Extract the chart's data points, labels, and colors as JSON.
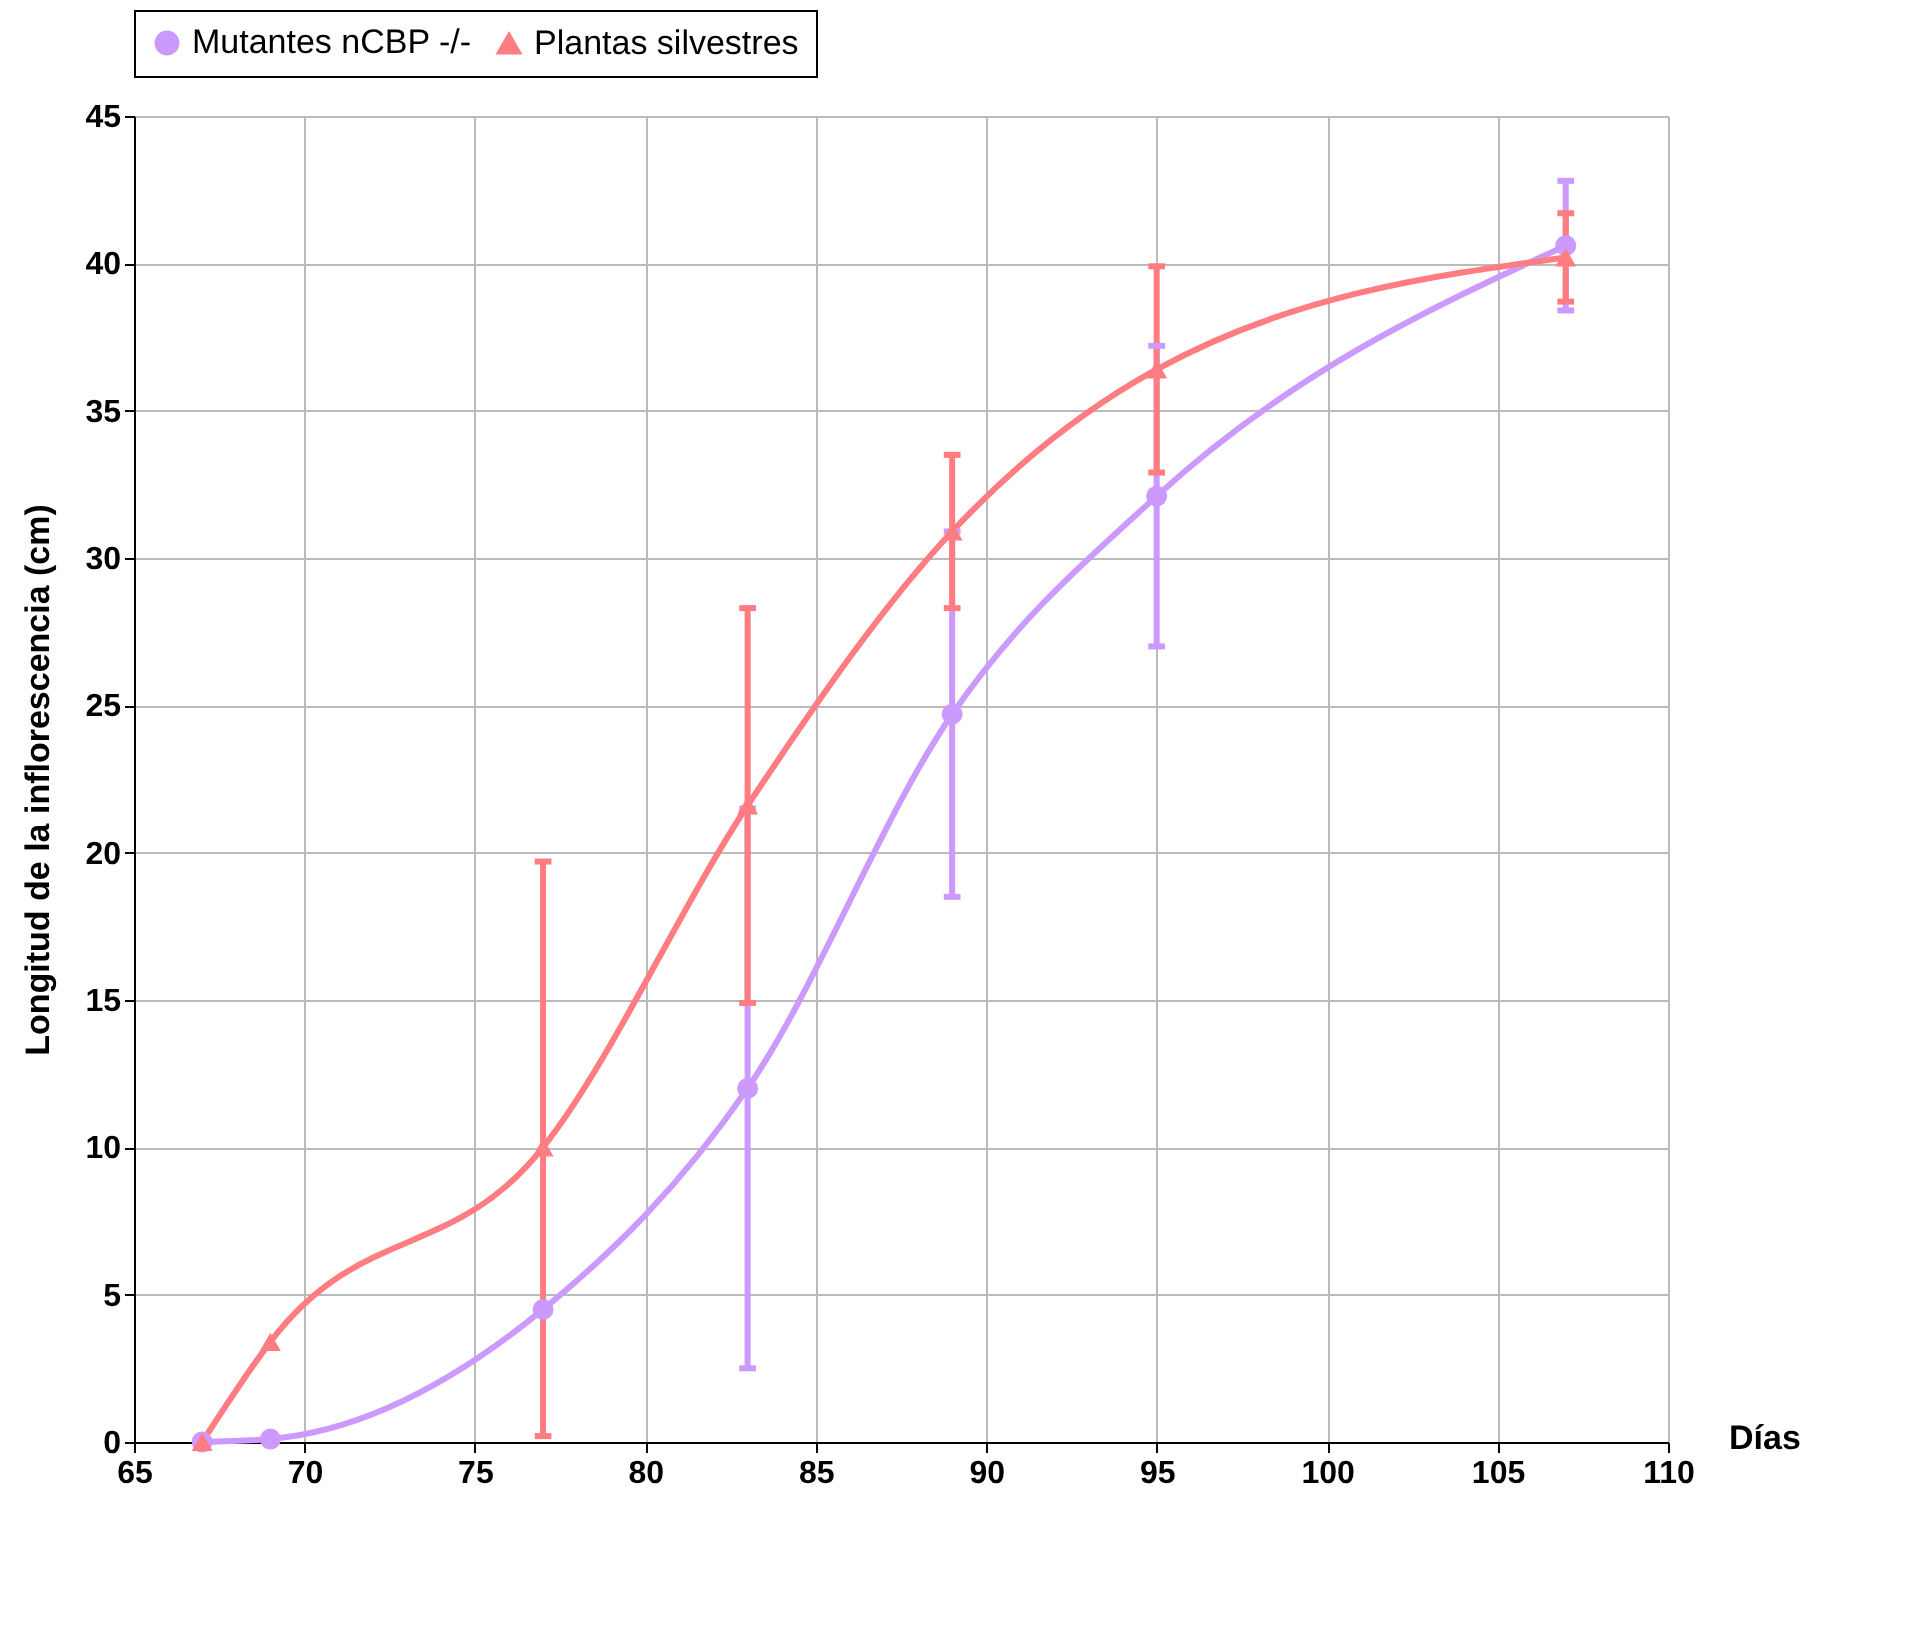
{
  "chart_data": {
    "type": "line",
    "xlabel": "Días",
    "ylabel": "Longitud de la inflorescencia (cm)",
    "x": [
      67,
      69,
      77,
      83,
      89,
      95,
      107
    ],
    "series": [
      {
        "name": "Mutantes nCBP -/-",
        "color": "#cc99ff",
        "marker": "circle",
        "values": [
          0,
          0.1,
          4.5,
          12,
          24.7,
          32.1,
          40.6
        ],
        "errors": [
          null,
          null,
          null,
          9.5,
          6.2,
          5.1,
          2.2
        ]
      },
      {
        "name": "Plantas silvestres",
        "color": "#ff7c80",
        "marker": "triangle",
        "values": [
          0,
          3.4,
          10,
          21.6,
          30.9,
          36.4,
          40.2
        ],
        "errors": [
          null,
          null,
          [
            0.2,
            19.7
          ],
          6.7,
          2.6,
          3.5,
          1.5
        ]
      }
    ],
    "xlim": [
      65,
      110
    ],
    "xticks": [
      65,
      70,
      75,
      80,
      85,
      90,
      95,
      100,
      105,
      110
    ],
    "ylim": [
      0,
      45
    ],
    "yticks": [
      0,
      5,
      10,
      15,
      20,
      25,
      30,
      35,
      40,
      45
    ],
    "grid": true,
    "legend": "top",
    "line_style": "solid"
  }
}
